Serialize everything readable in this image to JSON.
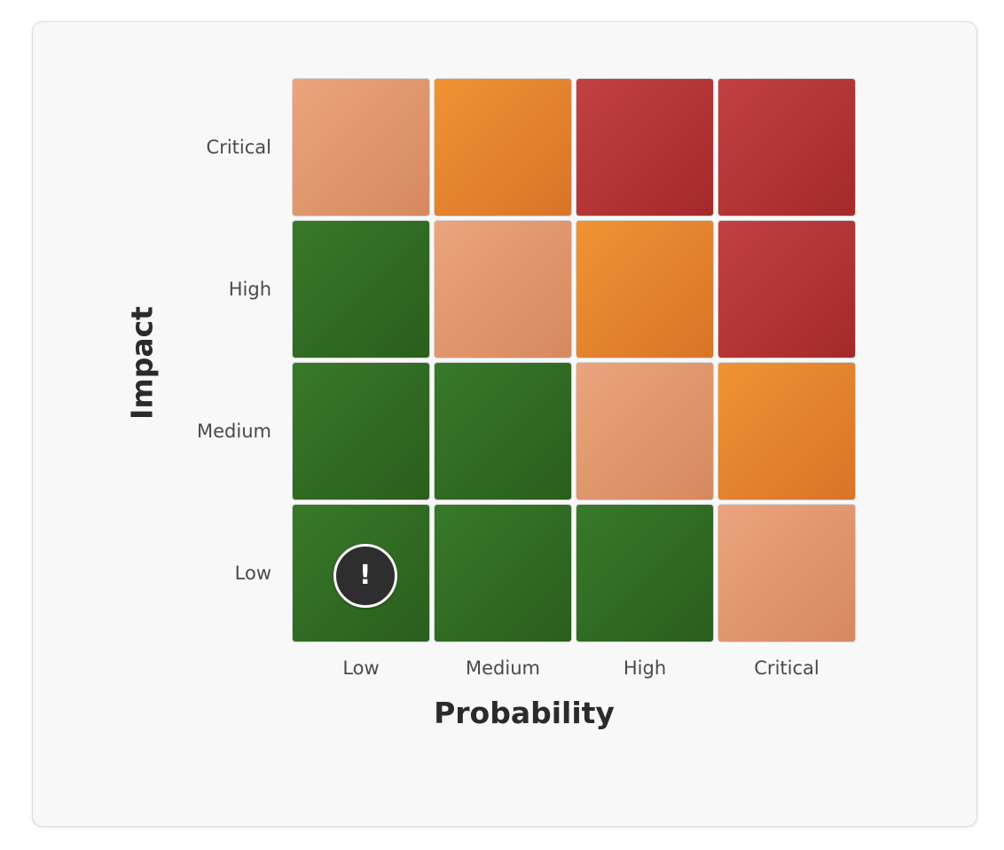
{
  "chart_data": {
    "type": "heatmap",
    "title": "",
    "xlabel": "Probability",
    "ylabel": "Impact",
    "x_categories": [
      "Low",
      "Medium",
      "High",
      "Critical"
    ],
    "y_categories": [
      "Low",
      "Medium",
      "High",
      "Critical"
    ],
    "levels": [
      [
        "green",
        "green",
        "green",
        "light-orange"
      ],
      [
        "green",
        "green",
        "light-orange",
        "orange"
      ],
      [
        "green",
        "light-orange",
        "orange",
        "red"
      ],
      [
        "light-orange",
        "orange",
        "red",
        "red"
      ]
    ],
    "level_colors": {
      "green": [
        "#38792a",
        "#2a5e1c"
      ],
      "light-orange": [
        "#eba47c",
        "#d6895e"
      ],
      "orange": [
        "#ef9334",
        "#d97428"
      ],
      "red": [
        "#c24142",
        "#a5292a"
      ]
    },
    "marker": {
      "probability": "Low",
      "impact": "Low",
      "symbol": "!"
    }
  }
}
